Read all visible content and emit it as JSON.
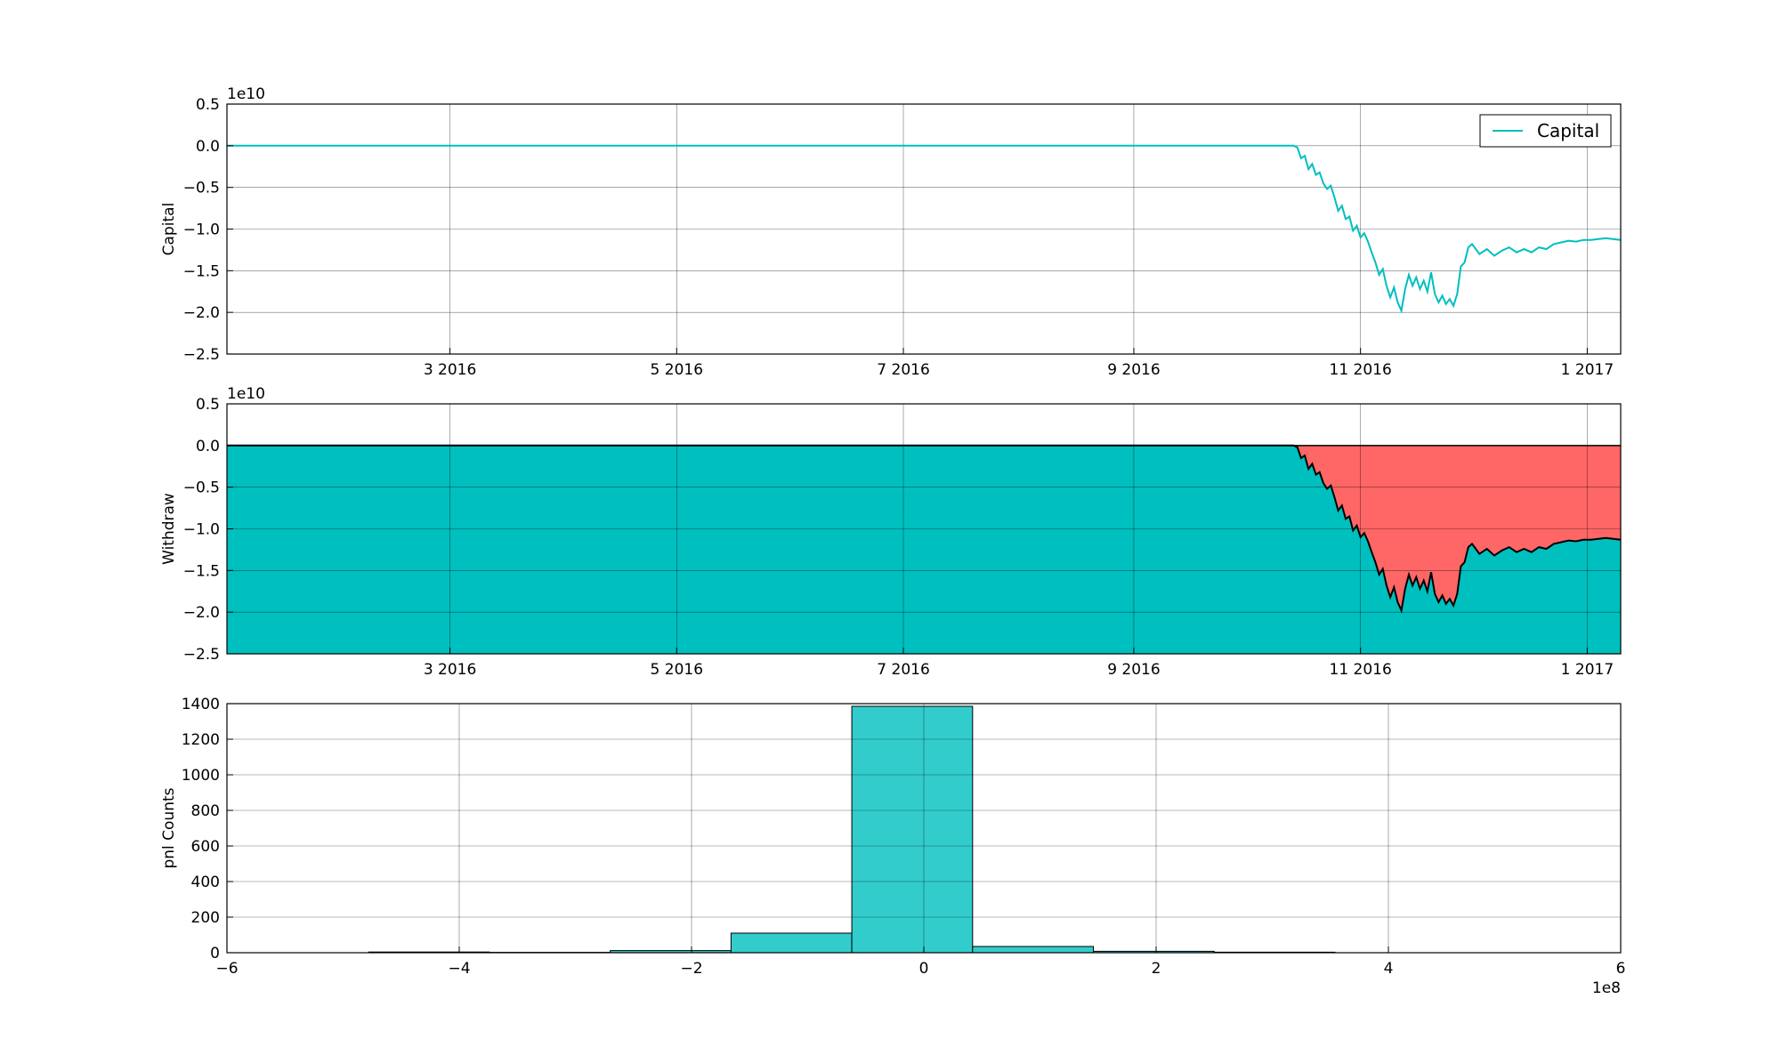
{
  "chart_data": [
    {
      "type": "line",
      "ylabel": "Capital",
      "offset_text": "1e10",
      "ylim": [
        -2.5,
        0.5
      ],
      "yticks": [
        0.5,
        0.0,
        -0.5,
        -1.0,
        -1.5,
        -2.0,
        -2.5
      ],
      "ytick_labels": [
        "0.5",
        "0.0",
        "−0.5",
        "−1.0",
        "−1.5",
        "−2.0",
        "−2.5"
      ],
      "xlim": [
        "2016-01-01",
        "2017-01-10"
      ],
      "xticks": [
        "2016-03-01",
        "2016-05-01",
        "2016-07-01",
        "2016-09-01",
        "2016-11-01",
        "2017-01-01"
      ],
      "xtick_labels": [
        "3 2016",
        "5 2016",
        "7 2016",
        "9 2016",
        "11 2016",
        "1 2017"
      ],
      "grid": true,
      "legend": {
        "placement": "top-right",
        "entries": [
          "Capital"
        ]
      },
      "series": [
        {
          "name": "Capital",
          "color": "#00bfbf",
          "points": [
            [
              "2016-01-01",
              0.0
            ],
            [
              "2016-10-14",
              0.0
            ],
            [
              "2016-10-15",
              -0.02
            ],
            [
              "2016-10-16",
              -0.15
            ],
            [
              "2016-10-17",
              -0.12
            ],
            [
              "2016-10-18",
              -0.28
            ],
            [
              "2016-10-19",
              -0.22
            ],
            [
              "2016-10-20",
              -0.35
            ],
            [
              "2016-10-21",
              -0.32
            ],
            [
              "2016-10-22",
              -0.45
            ],
            [
              "2016-10-23",
              -0.52
            ],
            [
              "2016-10-24",
              -0.48
            ],
            [
              "2016-10-25",
              -0.62
            ],
            [
              "2016-10-26",
              -0.78
            ],
            [
              "2016-10-27",
              -0.72
            ],
            [
              "2016-10-28",
              -0.88
            ],
            [
              "2016-10-29",
              -0.85
            ],
            [
              "2016-10-30",
              -1.02
            ],
            [
              "2016-10-31",
              -0.96
            ],
            [
              "2016-11-01",
              -1.1
            ],
            [
              "2016-11-02",
              -1.05
            ],
            [
              "2016-11-03",
              -1.15
            ],
            [
              "2016-11-04",
              -1.28
            ],
            [
              "2016-11-05",
              -1.4
            ],
            [
              "2016-11-06",
              -1.55
            ],
            [
              "2016-11-07",
              -1.48
            ],
            [
              "2016-11-08",
              -1.68
            ],
            [
              "2016-11-09",
              -1.82
            ],
            [
              "2016-11-10",
              -1.7
            ],
            [
              "2016-11-11",
              -1.88
            ],
            [
              "2016-11-12",
              -1.98
            ],
            [
              "2016-11-13",
              -1.72
            ],
            [
              "2016-11-14",
              -1.55
            ],
            [
              "2016-11-15",
              -1.68
            ],
            [
              "2016-11-16",
              -1.58
            ],
            [
              "2016-11-17",
              -1.72
            ],
            [
              "2016-11-18",
              -1.62
            ],
            [
              "2016-11-19",
              -1.75
            ],
            [
              "2016-11-20",
              -1.52
            ],
            [
              "2016-11-21",
              -1.78
            ],
            [
              "2016-11-22",
              -1.88
            ],
            [
              "2016-11-23",
              -1.8
            ],
            [
              "2016-11-24",
              -1.9
            ],
            [
              "2016-11-25",
              -1.84
            ],
            [
              "2016-11-26",
              -1.92
            ],
            [
              "2016-11-27",
              -1.78
            ],
            [
              "2016-11-28",
              -1.45
            ],
            [
              "2016-11-29",
              -1.4
            ],
            [
              "2016-11-30",
              -1.22
            ],
            [
              "2016-12-01",
              -1.18
            ],
            [
              "2016-12-03",
              -1.3
            ],
            [
              "2016-12-05",
              -1.24
            ],
            [
              "2016-12-07",
              -1.32
            ],
            [
              "2016-12-09",
              -1.26
            ],
            [
              "2016-12-11",
              -1.22
            ],
            [
              "2016-12-13",
              -1.28
            ],
            [
              "2016-12-15",
              -1.24
            ],
            [
              "2016-12-17",
              -1.28
            ],
            [
              "2016-12-19",
              -1.22
            ],
            [
              "2016-12-21",
              -1.24
            ],
            [
              "2016-12-23",
              -1.18
            ],
            [
              "2016-12-25",
              -1.16
            ],
            [
              "2016-12-27",
              -1.14
            ],
            [
              "2016-12-29",
              -1.15
            ],
            [
              "2016-12-31",
              -1.13
            ],
            [
              "2017-01-02",
              -1.13
            ],
            [
              "2017-01-04",
              -1.12
            ],
            [
              "2017-01-06",
              -1.11
            ],
            [
              "2017-01-08",
              -1.12
            ],
            [
              "2017-01-10",
              -1.13
            ]
          ]
        }
      ]
    },
    {
      "type": "area",
      "ylabel": "Withdraw",
      "offset_text": "1e10",
      "ylim": [
        -2.5,
        0.5
      ],
      "yticks": [
        0.5,
        0.0,
        -0.5,
        -1.0,
        -1.5,
        -2.0,
        -2.5
      ],
      "ytick_labels": [
        "0.5",
        "0.0",
        "−0.5",
        "−1.0",
        "−1.5",
        "−2.0",
        "−2.5"
      ],
      "xlim": [
        "2016-01-01",
        "2017-01-10"
      ],
      "xticks": [
        "2016-03-01",
        "2016-05-01",
        "2016-07-01",
        "2016-09-01",
        "2016-11-01",
        "2017-01-01"
      ],
      "xtick_labels": [
        "3 2016",
        "5 2016",
        "7 2016",
        "9 2016",
        "11 2016",
        "1 2017"
      ],
      "grid": true,
      "fill_colors": {
        "below": "#00bfbf",
        "above": "#ff6666",
        "line": "#000000"
      },
      "baseline": 0.0
    },
    {
      "type": "bar",
      "ylabel": "pnl Counts",
      "offset_text": "1e8",
      "xlim": [
        -6,
        6
      ],
      "ylim": [
        0,
        1400
      ],
      "xticks": [
        -6,
        -4,
        -2,
        0,
        2,
        4,
        6
      ],
      "xtick_labels": [
        "−6",
        "−4",
        "−2",
        "0",
        "2",
        "4",
        "6"
      ],
      "yticks": [
        0,
        200,
        400,
        600,
        800,
        1000,
        1200,
        1400
      ],
      "ytick_labels": [
        "0",
        "200",
        "400",
        "600",
        "800",
        "1000",
        "1200",
        "1400"
      ],
      "grid": true,
      "bar_color": "#33cccc",
      "bins": [
        {
          "x0": -4.78,
          "x1": -3.74,
          "count": 4
        },
        {
          "x0": -3.74,
          "x1": -2.7,
          "count": 2
        },
        {
          "x0": -2.7,
          "x1": -1.66,
          "count": 12
        },
        {
          "x0": -1.66,
          "x1": -0.62,
          "count": 110
        },
        {
          "x0": -0.62,
          "x1": 0.42,
          "count": 1385
        },
        {
          "x0": 0.42,
          "x1": 1.46,
          "count": 35
        },
        {
          "x0": 1.46,
          "x1": 2.5,
          "count": 8
        },
        {
          "x0": 2.5,
          "x1": 3.54,
          "count": 3
        }
      ]
    }
  ]
}
